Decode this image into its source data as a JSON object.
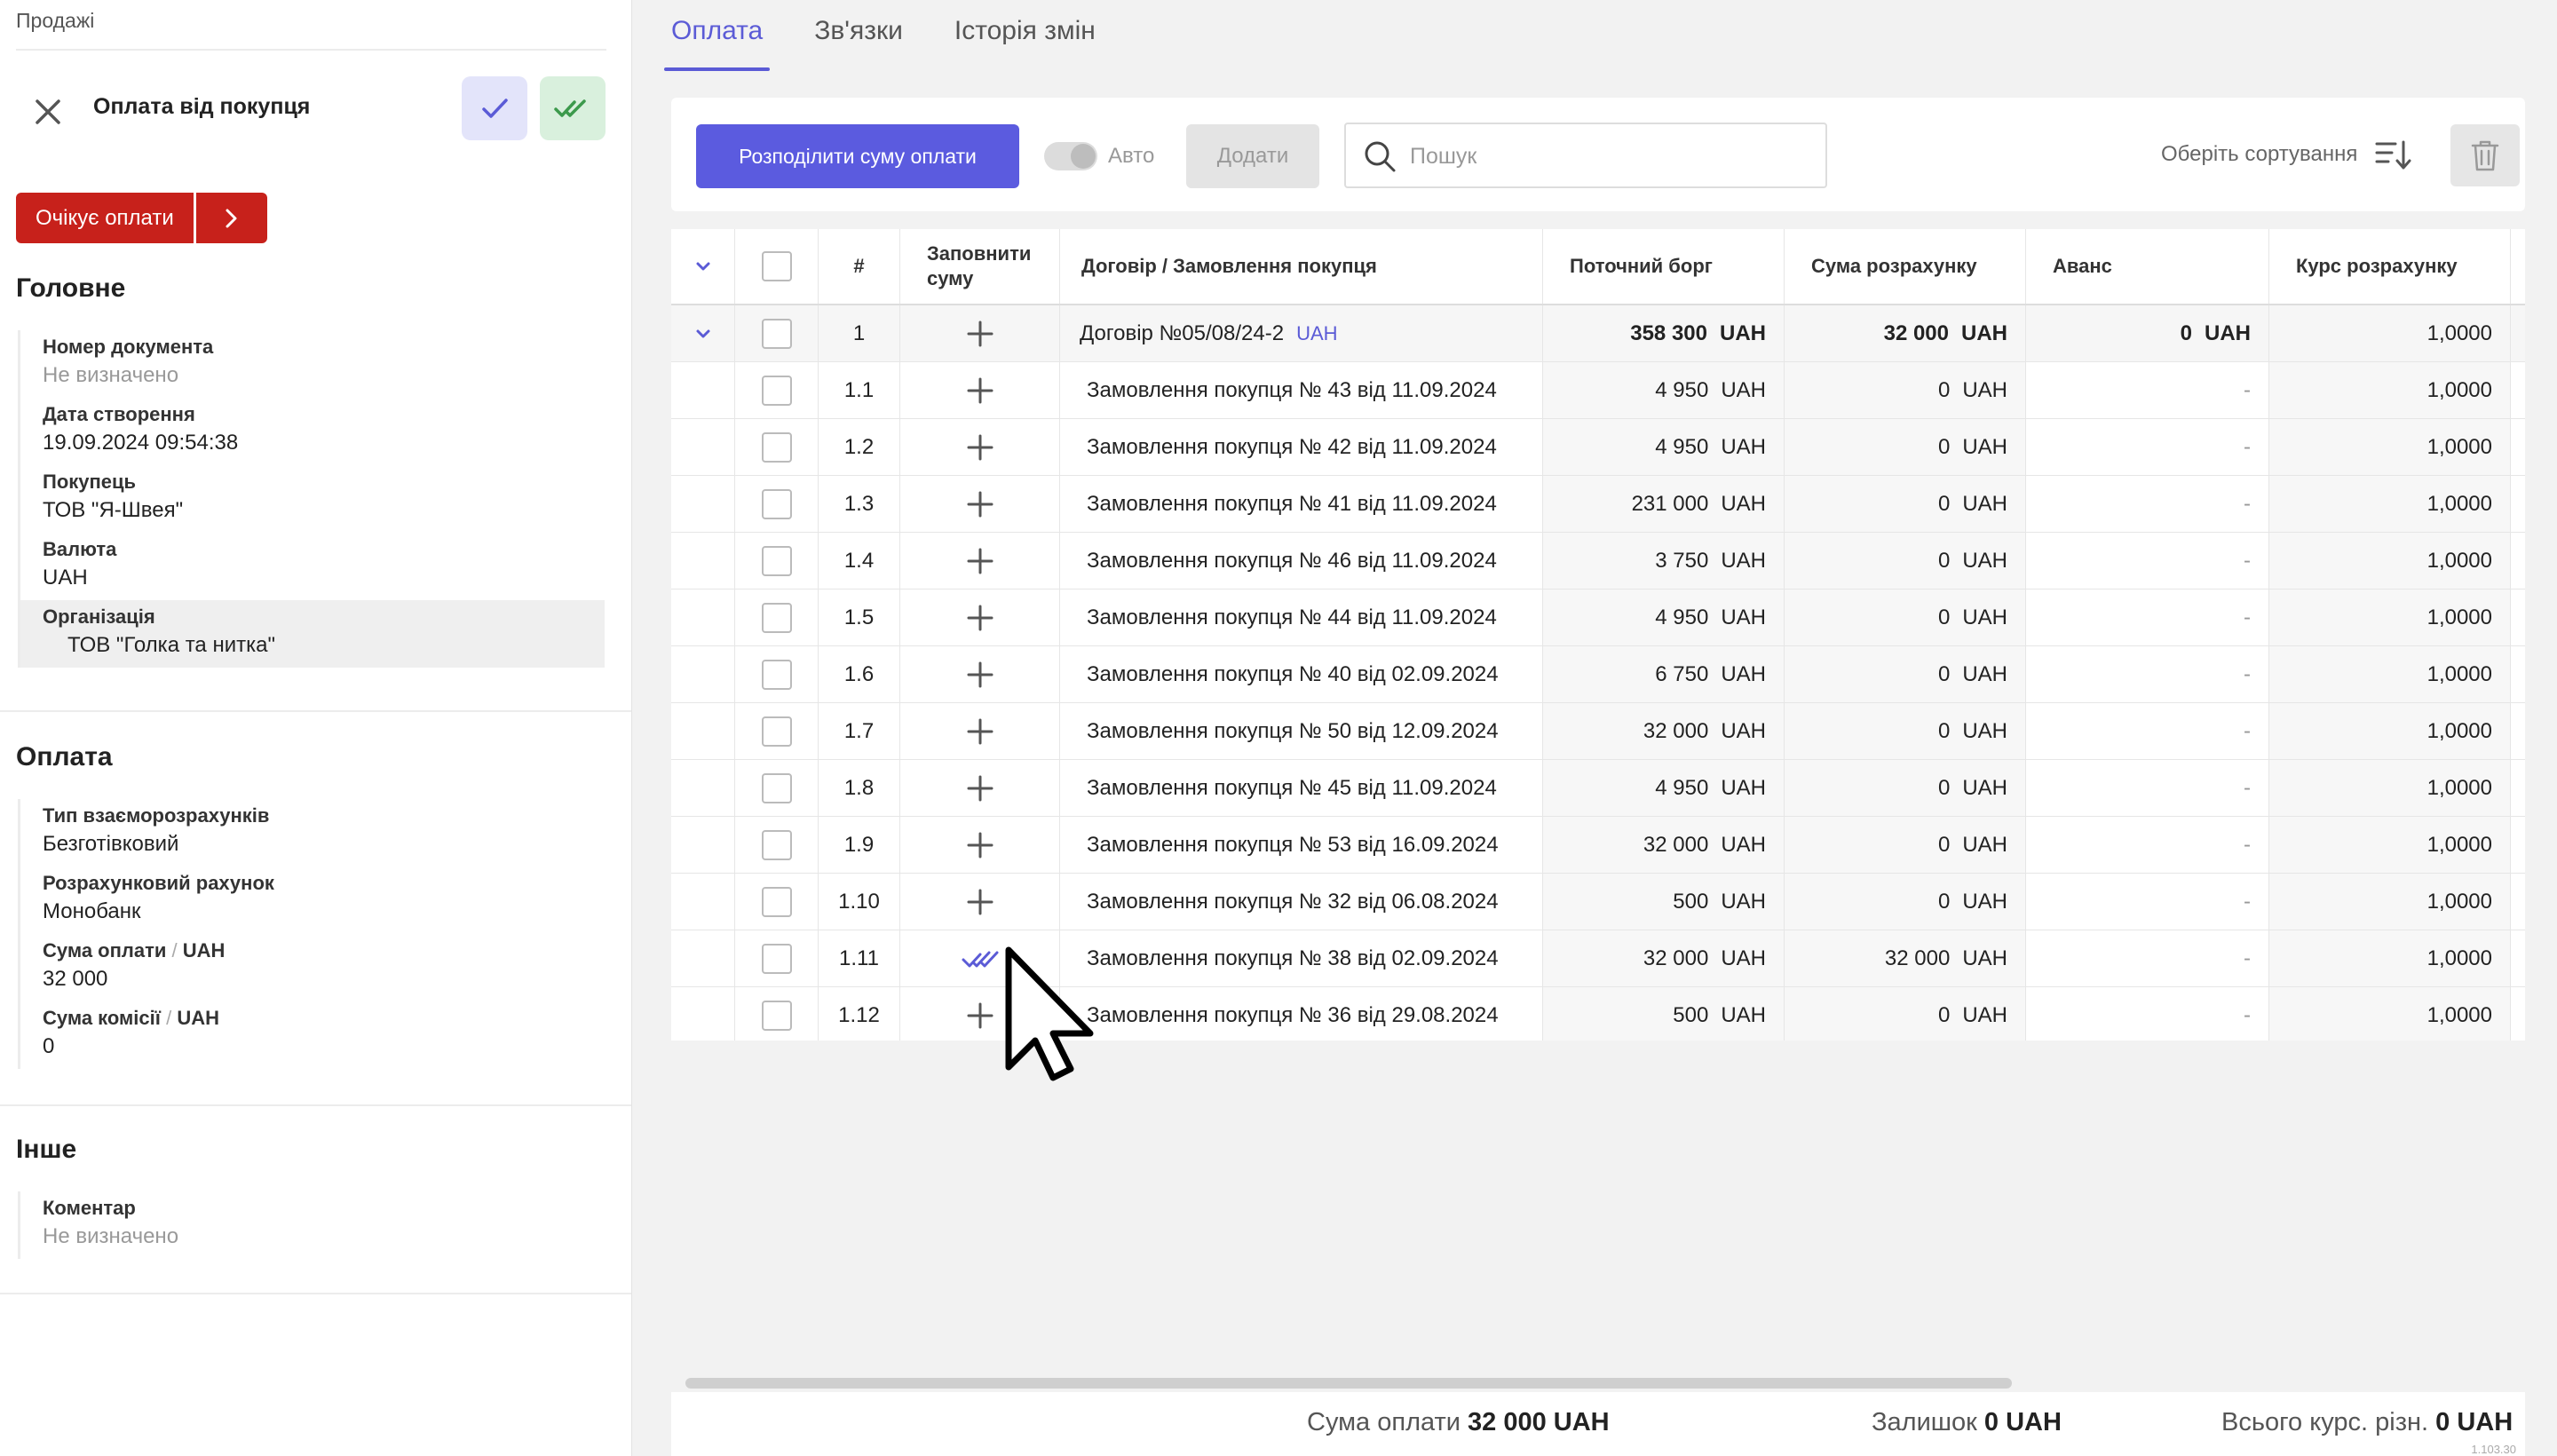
{
  "breadcrumb": "Продажі",
  "form": {
    "title": "Оплата від покупця",
    "status": "Очікує оплати"
  },
  "sections": {
    "main": {
      "title": "Головне",
      "fields": [
        {
          "label": "Номер документа",
          "value": "Не визначено",
          "muted": true
        },
        {
          "label": "Дата створення",
          "value": "19.09.2024 09:54:38"
        },
        {
          "label": "Покупець",
          "value": "ТОВ \"Я-Швея\""
        },
        {
          "label": "Валюта",
          "value": "UAH"
        },
        {
          "label": "Організація",
          "value": "ТОВ \"Голка та нитка\"",
          "highlight": true
        }
      ]
    },
    "payment": {
      "title": "Оплата",
      "fields": [
        {
          "label": "Тип взаєморозрахунків",
          "value": "Безготівковий"
        },
        {
          "label": "Розрахунковий рахунок",
          "value": "Монобанк"
        },
        {
          "label": "Сума оплати",
          "unit": "UAH",
          "value": "32 000"
        },
        {
          "label": "Сума комісії",
          "unit": "UAH",
          "value": "0"
        }
      ]
    },
    "other": {
      "title": "Інше",
      "fields": [
        {
          "label": "Коментар",
          "value": "Не визначено",
          "muted": true
        }
      ]
    }
  },
  "tabs": [
    "Оплата",
    "Зв'язки",
    "Історія змін"
  ],
  "toolbar": {
    "distribute_label": "Розподілити суму оплати",
    "auto_label": "Авто",
    "add_label": "Додати",
    "search_placeholder": "Пошук",
    "sort_label": "Оберіть сортування"
  },
  "table": {
    "headers": {
      "num": "#",
      "fill": "Заповнити суму",
      "doc": "Договір / Замовлення покупця",
      "debt": "Поточний борг",
      "sum": "Сума розрахунку",
      "advance": "Аванс",
      "rate": "Курс розрахунку"
    },
    "currency": "UAH",
    "main_row": {
      "num": "1",
      "doc": "Договір №05/08/24-2",
      "doc_currency": "UAH",
      "debt": "358 300",
      "sum": "32 000",
      "advance": "0",
      "rate": "1,0000"
    },
    "rows": [
      {
        "num": "1.1",
        "doc": "Замовлення покупця № 43 від 11.09.2024",
        "debt": "4 950",
        "sum": "0",
        "advance": "-",
        "rate": "1,0000",
        "filled": false
      },
      {
        "num": "1.2",
        "doc": "Замовлення покупця № 42 від 11.09.2024",
        "debt": "4 950",
        "sum": "0",
        "advance": "-",
        "rate": "1,0000",
        "filled": false
      },
      {
        "num": "1.3",
        "doc": "Замовлення покупця № 41 від 11.09.2024",
        "debt": "231 000",
        "sum": "0",
        "advance": "-",
        "rate": "1,0000",
        "filled": false
      },
      {
        "num": "1.4",
        "doc": "Замовлення покупця № 46 від 11.09.2024",
        "debt": "3 750",
        "sum": "0",
        "advance": "-",
        "rate": "1,0000",
        "filled": false
      },
      {
        "num": "1.5",
        "doc": "Замовлення покупця № 44 від 11.09.2024",
        "debt": "4 950",
        "sum": "0",
        "advance": "-",
        "rate": "1,0000",
        "filled": false
      },
      {
        "num": "1.6",
        "doc": "Замовлення покупця № 40 від 02.09.2024",
        "debt": "6 750",
        "sum": "0",
        "advance": "-",
        "rate": "1,0000",
        "filled": false
      },
      {
        "num": "1.7",
        "doc": "Замовлення покупця № 50 від 12.09.2024",
        "debt": "32 000",
        "sum": "0",
        "advance": "-",
        "rate": "1,0000",
        "filled": false
      },
      {
        "num": "1.8",
        "doc": "Замовлення покупця № 45 від 11.09.2024",
        "debt": "4 950",
        "sum": "0",
        "advance": "-",
        "rate": "1,0000",
        "filled": false
      },
      {
        "num": "1.9",
        "doc": "Замовлення покупця № 53 від 16.09.2024",
        "debt": "32 000",
        "sum": "0",
        "advance": "-",
        "rate": "1,0000",
        "filled": false
      },
      {
        "num": "1.10",
        "doc": "Замовлення покупця № 32 від 06.08.2024",
        "debt": "500",
        "sum": "0",
        "advance": "-",
        "rate": "1,0000",
        "filled": false
      },
      {
        "num": "1.11",
        "doc": "Замовлення покупця № 38 від 02.09.2024",
        "debt": "32 000",
        "sum": "32 000",
        "advance": "-",
        "rate": "1,0000",
        "filled": true
      },
      {
        "num": "1.12",
        "doc": "Замовлення покупця № 36 від 29.08.2024",
        "debt": "500",
        "sum": "0",
        "advance": "-",
        "rate": "1,0000",
        "filled": false
      }
    ]
  },
  "footer": {
    "payment_label": "Сума оплати",
    "payment_value": "32 000 UAH",
    "balance_label": "Залишок",
    "balance_value": "0 UAH",
    "rate_diff_label": "Всього курс. різн.",
    "rate_diff_value": "0 UAH",
    "version": "1.103.30"
  },
  "colors": {
    "accent": "#5b5bd6",
    "status": "#c7211b",
    "approve_bg": "#e3e4fa",
    "post_bg": "#d9f0dd"
  }
}
